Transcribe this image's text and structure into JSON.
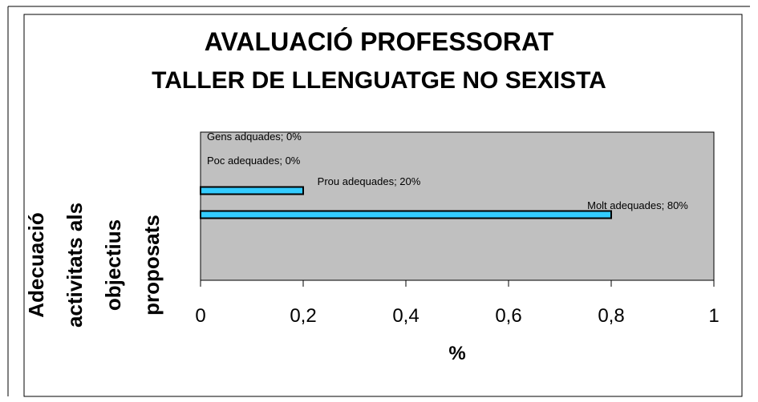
{
  "chart_data": {
    "type": "barh",
    "title": "AVALUACIÓ PROFESSORAT",
    "subtitle": "TALLER DE LLENGUATGE NO SEXISTA",
    "ylabel": "Adecuació activitats als objectius proposats",
    "xlabel": "%",
    "values": [
      0,
      0,
      0.2,
      0.8
    ],
    "value_labels": [
      "Gens adquades; 0%",
      "Poc adequades; 0%",
      "Prou adequades; 20%",
      "Molt adequades; 80%"
    ],
    "color": "#33ccff",
    "plot_background": "#c0c0c0",
    "xlim": [
      0,
      1
    ],
    "xticks": [
      0,
      {
        "value": 0.2,
        "label": "0,2"
      },
      {
        "value": 0.4,
        "label": "0,4"
      },
      {
        "value": 0.6,
        "label": "0,6"
      },
      {
        "value": 0.8,
        "label": "0,8"
      },
      1
    ]
  }
}
